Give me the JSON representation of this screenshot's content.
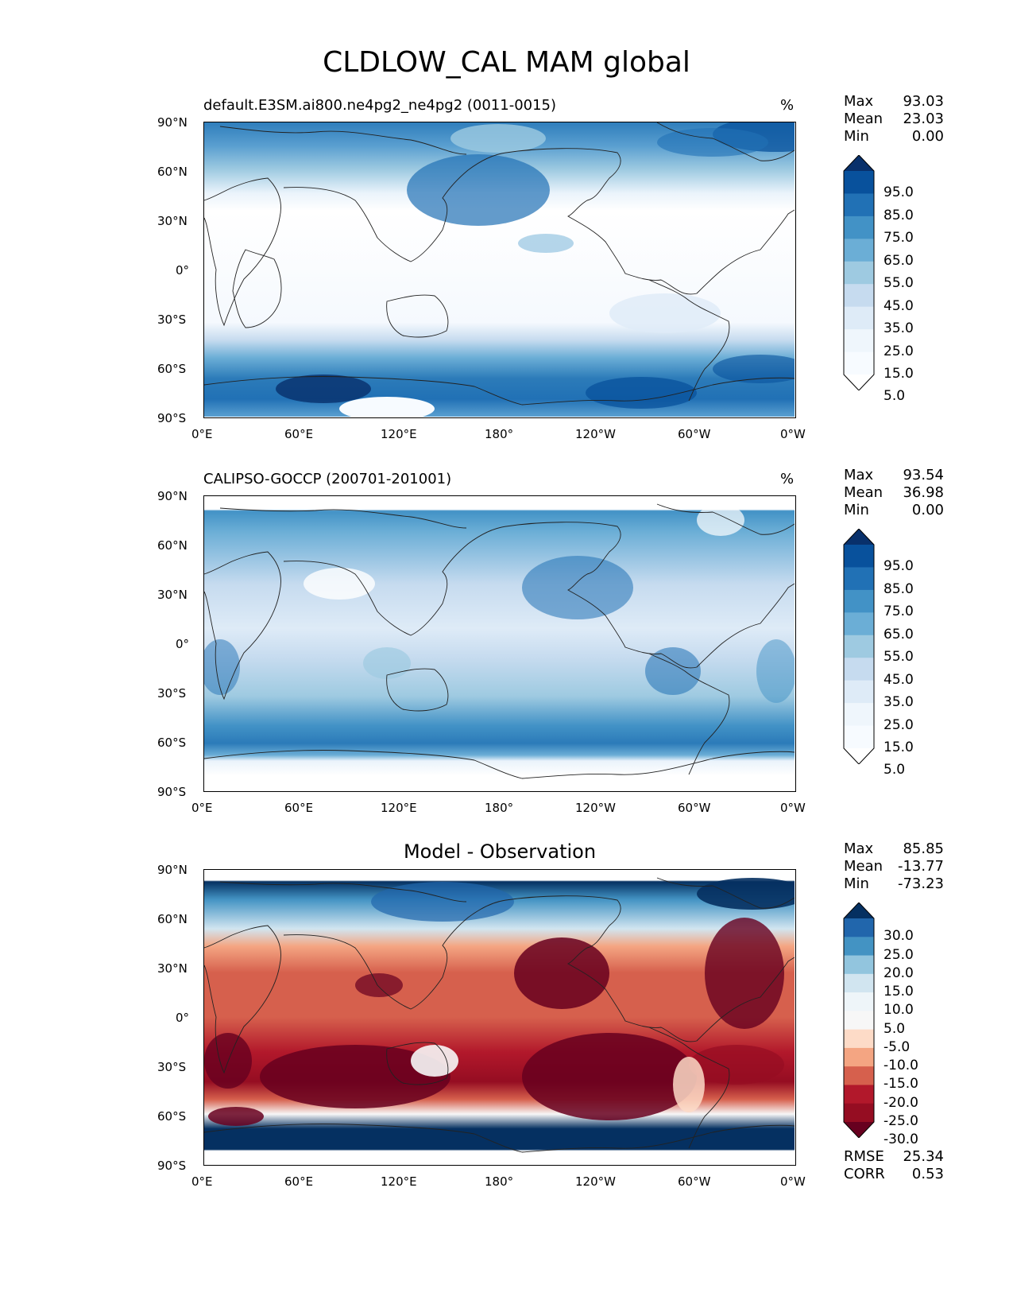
{
  "title": "CLDLOW_CAL MAM global",
  "lon_ticks": [
    "0°E",
    "60°E",
    "120°E",
    "180°",
    "120°W",
    "60°W",
    "0°W"
  ],
  "lat_ticks": [
    "90°N",
    "60°N",
    "30°N",
    "0°",
    "30°S",
    "60°S",
    "90°S"
  ],
  "panels": [
    {
      "title": "default.E3SM.ai800.ne4pg2_ne4pg2 (0011-0015)",
      "units": "%",
      "stats": {
        "max_label": "Max",
        "max": "93.03",
        "mean_label": "Mean",
        "mean": "23.03",
        "min_label": "Min",
        "min": "0.00"
      },
      "colorbar": {
        "labels": [
          "95.0",
          "85.0",
          "75.0",
          "65.0",
          "55.0",
          "45.0",
          "35.0",
          "25.0",
          "15.0",
          "5.0"
        ],
        "colors": [
          "#08306b",
          "#08519c",
          "#2171b5",
          "#4292c6",
          "#6baed6",
          "#9ecae1",
          "#c6dbef",
          "#deebf7",
          "#eff6fc",
          "#f7fbff",
          "#ffffff"
        ]
      }
    },
    {
      "title": "CALIPSO-GOCCP (200701-201001)",
      "units": "%",
      "stats": {
        "max_label": "Max",
        "max": "93.54",
        "mean_label": "Mean",
        "mean": "36.98",
        "min_label": "Min",
        "min": "0.00"
      },
      "colorbar": {
        "labels": [
          "95.0",
          "85.0",
          "75.0",
          "65.0",
          "55.0",
          "45.0",
          "35.0",
          "25.0",
          "15.0",
          "5.0"
        ],
        "colors": [
          "#08306b",
          "#08519c",
          "#2171b5",
          "#4292c6",
          "#6baed6",
          "#9ecae1",
          "#c6dbef",
          "#deebf7",
          "#eff6fc",
          "#f7fbff",
          "#ffffff"
        ]
      }
    },
    {
      "title": "Model - Observation",
      "stats": {
        "max_label": "Max",
        "max": "85.85",
        "mean_label": "Mean",
        "mean": "-13.77",
        "min_label": "Min",
        "min": "-73.23"
      },
      "colorbar": {
        "labels": [
          "30.0",
          "25.0",
          "20.0",
          "15.0",
          "10.0",
          "5.0",
          "-5.0",
          "-10.0",
          "-15.0",
          "-20.0",
          "-25.0",
          "-30.0"
        ],
        "colors": [
          "#053061",
          "#2166ac",
          "#4393c3",
          "#92c5de",
          "#d1e5f0",
          "#eef5f9",
          "#f7f7f7",
          "#fddbc7",
          "#f4a582",
          "#d6604d",
          "#b2182b",
          "#950d22",
          "#67001f"
        ]
      },
      "rmse_label": "RMSE",
      "rmse": "25.34",
      "corr_label": "CORR",
      "corr": "0.53"
    }
  ]
}
